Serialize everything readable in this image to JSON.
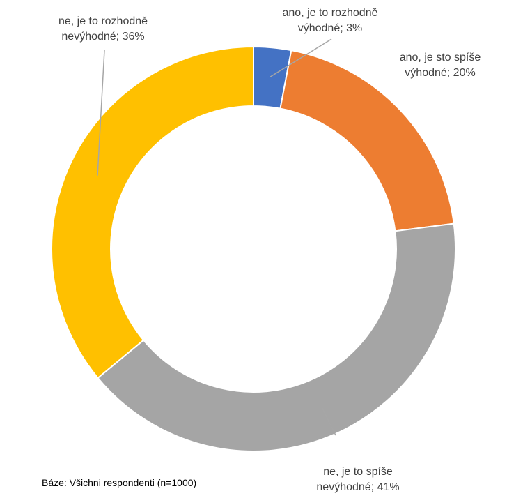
{
  "chart_data": {
    "type": "pie",
    "subtype": "donut",
    "slices": [
      {
        "label": [
          "ano, je to rozhodně",
          "výhodné; 3%"
        ],
        "value": 3,
        "color": "#4472C4"
      },
      {
        "label": [
          "ano, je sto spíše",
          "výhodné; 20%"
        ],
        "value": 20,
        "color": "#ED7D31"
      },
      {
        "label": [
          "ne, je to spíše",
          "nevýhodné; 41%"
        ],
        "value": 41,
        "color": "#A5A5A5"
      },
      {
        "label": [
          "ne, je to rozhodně",
          "nevýhodné; 36%"
        ],
        "value": 36,
        "color": "#FFC000"
      }
    ]
  },
  "note": "Báze: Všichni respondenti (n=1000)"
}
